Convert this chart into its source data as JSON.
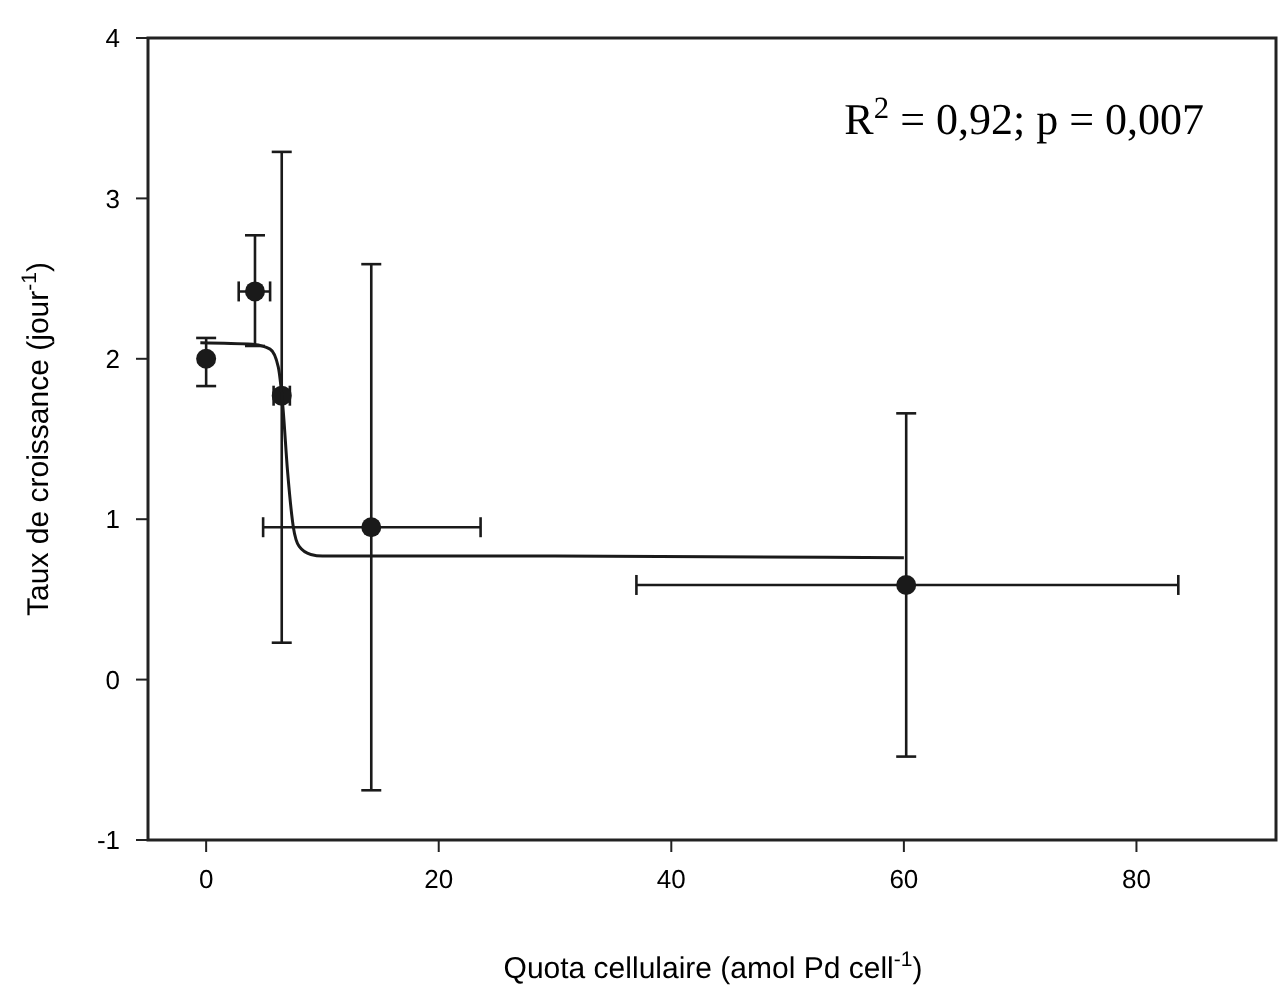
{
  "chart_data": {
    "type": "scatter",
    "xlabel": "Quota cellulaire (amol Pd cell$^{-1}$)",
    "ylabel": "Taux de croissance (jour$^{-1}$)",
    "annotations": [
      "R$^{2}$ = 0,92; p = 0,007"
    ],
    "xlim": [
      -5,
      92
    ],
    "xticks": [
      0,
      20,
      40,
      60,
      80
    ],
    "ylim": [
      -1,
      4
    ],
    "yticks": [
      -1,
      0,
      1,
      2,
      3,
      4
    ],
    "grid": false,
    "marker": "circle",
    "series": [
      {
        "color": "#1a1a1a",
        "x": [
          0,
          4.2,
          6.5,
          14.2,
          60.2
        ],
        "values": [
          2.0,
          2.42,
          1.77,
          0.95,
          0.59
        ],
        "errors": [
          [
            1.83,
            2.13
          ],
          [
            2.08,
            2.77
          ],
          [
            0.23,
            3.29
          ],
          [
            -0.69,
            2.59
          ],
          [
            -0.48,
            1.66
          ]
        ],
        "xerrors": [
          null,
          [
            2.8,
            5.5
          ],
          [
            5.8,
            7.2
          ],
          [
            4.9,
            23.6
          ],
          [
            37,
            83.6
          ]
        ]
      },
      {
        "type": "line",
        "color": "#1a1a1a",
        "line_style": "solid",
        "marker": "none",
        "x": [
          -0.5,
          4,
          5.5,
          6.2,
          6.6,
          7,
          7.5,
          8,
          9,
          10,
          30,
          60
        ],
        "values": [
          2.1,
          2.09,
          2.06,
          1.95,
          1.7,
          1.3,
          0.95,
          0.83,
          0.78,
          0.77,
          0.77,
          0.76
        ]
      }
    ]
  }
}
